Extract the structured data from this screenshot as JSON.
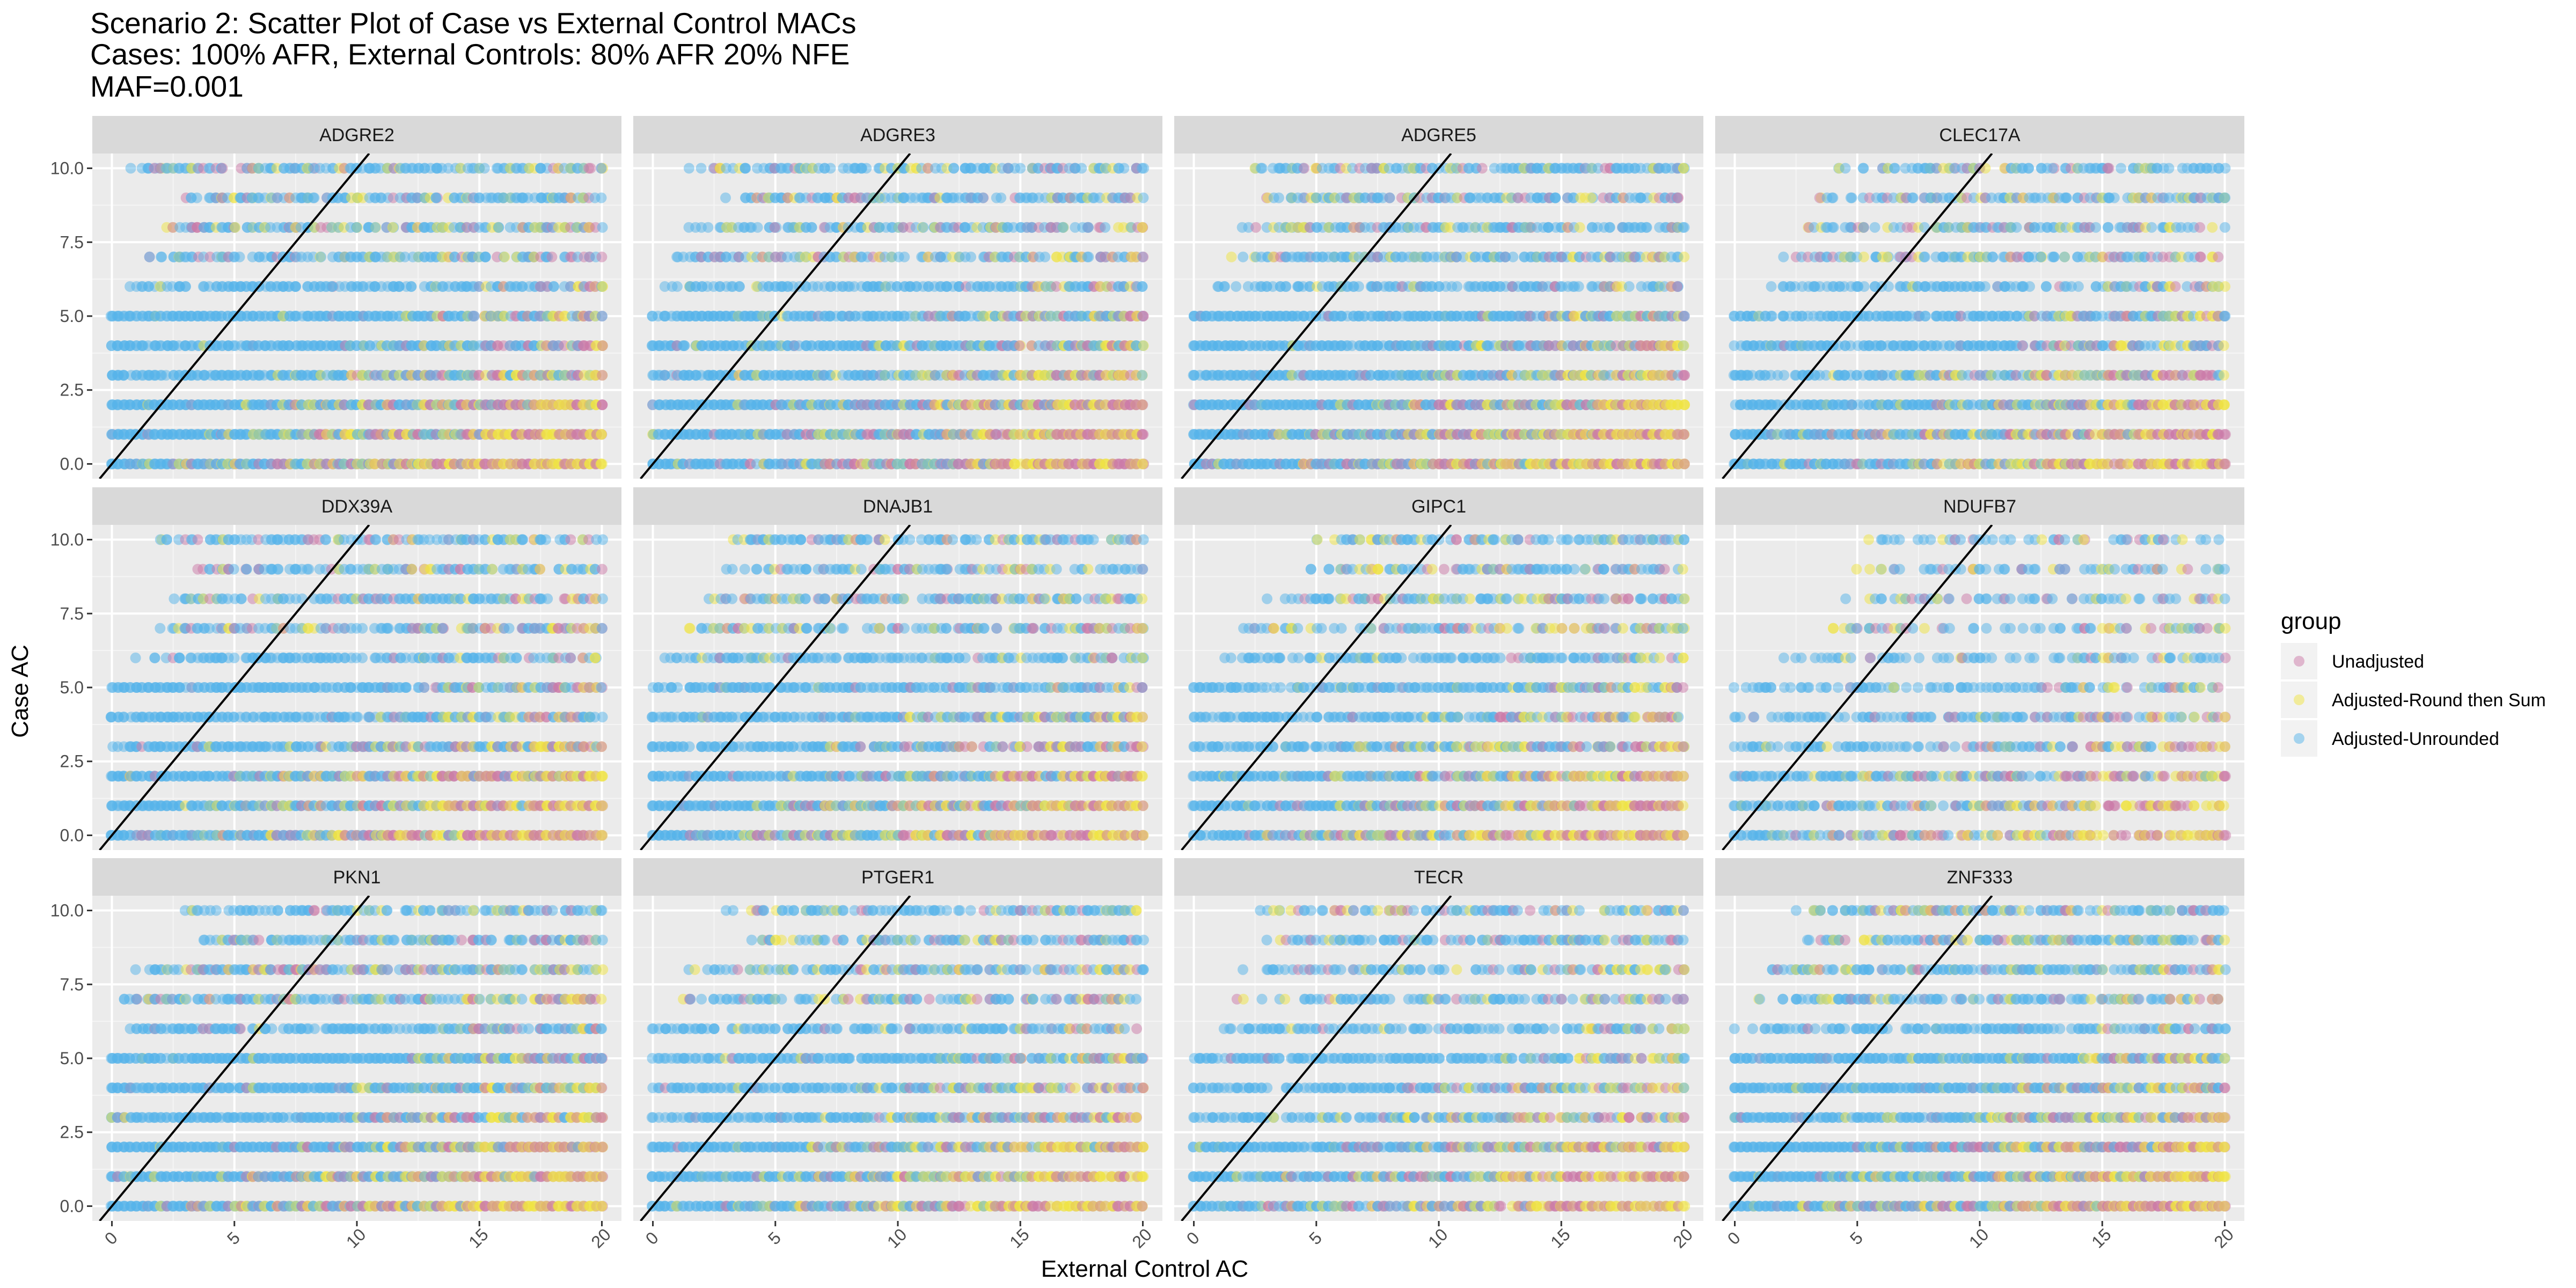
{
  "chart_data": {
    "type": "scatter",
    "title_lines": [
      "Scenario 2: Scatter Plot of Case vs External Control MACs",
      "Cases: 100% AFR, External Controls: 80% AFR 20% NFE",
      "MAF=0.001"
    ],
    "xlabel": "External Control AC",
    "ylabel": "Case AC",
    "xlim": [
      -0.8,
      20.8
    ],
    "ylim": [
      -0.5,
      10.5
    ],
    "x_ticks": [
      "0",
      "5",
      "10",
      "15",
      "20"
    ],
    "x_tick_values": [
      0,
      5,
      10,
      15,
      20
    ],
    "y_ticks": [
      "0.0",
      "2.5",
      "5.0",
      "7.5",
      "10.0"
    ],
    "y_tick_values": [
      0,
      2.5,
      5,
      7.5,
      10
    ],
    "grid": true,
    "reference_line": {
      "slope": 1,
      "intercept": 0,
      "color": "#000000"
    },
    "legend": {
      "title": "group",
      "position": "right",
      "entries": [
        {
          "name": "Unadjusted",
          "color": "#CC79A7"
        },
        {
          "name": "Adjusted-Round then Sum",
          "color": "#F0E442"
        },
        {
          "name": "Adjusted-Unrounded",
          "color": "#56B4E9"
        }
      ]
    },
    "facets": [
      {
        "label": "ADGRE2",
        "x_min_by_y": [
          0,
          0,
          0,
          0,
          0,
          0,
          0.5,
          1,
          2,
          3,
          0.5
        ],
        "x_max": 20,
        "density": 0.85
      },
      {
        "label": "ADGRE3",
        "x_min_by_y": [
          0,
          0,
          0,
          0,
          0,
          0,
          0.5,
          1,
          1.5,
          2.5,
          1.5
        ],
        "x_max": 20,
        "density": 0.8
      },
      {
        "label": "ADGRE5",
        "x_min_by_y": [
          0,
          0,
          0,
          0,
          0,
          0,
          1,
          1.5,
          2,
          3,
          2.5
        ],
        "x_max": 20,
        "density": 0.85
      },
      {
        "label": "CLEC17A",
        "x_min_by_y": [
          0,
          0,
          0,
          0,
          0,
          0,
          1,
          2,
          2.5,
          3.5,
          4
        ],
        "x_max": 20,
        "density": 0.7
      },
      {
        "label": "DDX39A",
        "x_min_by_y": [
          0,
          0,
          0,
          0,
          0,
          0,
          1,
          1.5,
          2,
          3,
          2
        ],
        "x_max": 20,
        "density": 0.75
      },
      {
        "label": "DNAJB1",
        "x_min_by_y": [
          0,
          0,
          0,
          0,
          0,
          0,
          0.5,
          1.5,
          2,
          3,
          3
        ],
        "x_max": 20,
        "density": 0.7
      },
      {
        "label": "GIPC1",
        "x_min_by_y": [
          0,
          0,
          0,
          0,
          0,
          0,
          1,
          2,
          3,
          4.5,
          5
        ],
        "x_max": 20,
        "density": 0.7
      },
      {
        "label": "NDUFB7",
        "x_min_by_y": [
          0,
          0,
          0,
          0,
          0,
          0,
          2,
          3,
          4.5,
          5,
          5
        ],
        "x_max": 20,
        "density": 0.45
      },
      {
        "label": "PKN1",
        "x_min_by_y": [
          0,
          0,
          0,
          0,
          0,
          0,
          0,
          0.5,
          1,
          3,
          3
        ],
        "x_max": 20,
        "density": 0.9
      },
      {
        "label": "PTGER1",
        "x_min_by_y": [
          0,
          0,
          0,
          0,
          0,
          0,
          0,
          0.5,
          1.5,
          3,
          3
        ],
        "x_max": 20,
        "density": 0.7
      },
      {
        "label": "TECR",
        "x_min_by_y": [
          0,
          0,
          0,
          0,
          0,
          0,
          0.5,
          1.5,
          2,
          3,
          2
        ],
        "x_max": 20,
        "density": 0.65
      },
      {
        "label": "ZNF333",
        "x_min_by_y": [
          0,
          0,
          0,
          0,
          0,
          0,
          0,
          1,
          1.5,
          3,
          2.5
        ],
        "x_max": 20,
        "density": 0.85
      }
    ]
  }
}
